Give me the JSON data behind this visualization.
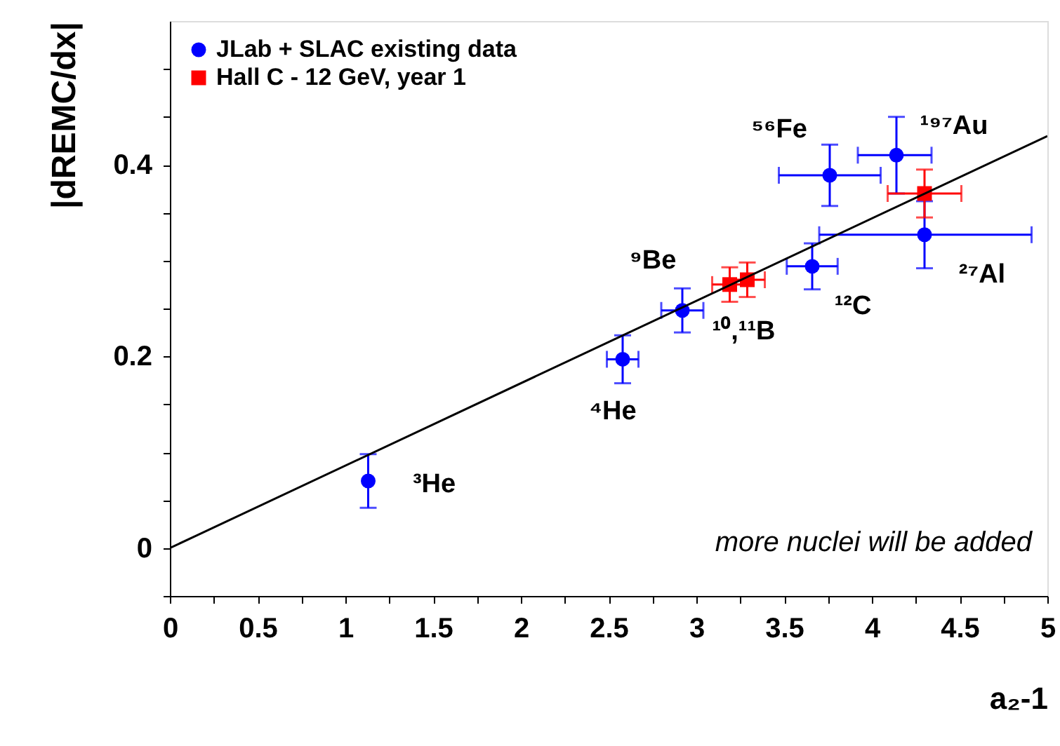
{
  "chart_data": {
    "type": "scatter",
    "xlabel": "a₂-1",
    "ylabel": "|dREMC/dx|",
    "xlim": [
      0,
      5
    ],
    "ylim": [
      -0.05,
      0.55
    ],
    "xticks": [
      0,
      {
        "value": 0.25,
        "label": null
      },
      0.5,
      {
        "value": 0.75,
        "label": null
      },
      1,
      {
        "value": 1.25,
        "label": null
      },
      1.5,
      {
        "value": 1.75,
        "label": null
      },
      2,
      {
        "value": 2.25,
        "label": null
      },
      2.5,
      {
        "value": 2.75,
        "label": null
      },
      3,
      {
        "value": 3.25,
        "label": null
      },
      3.5,
      {
        "value": 3.75,
        "label": null
      },
      4,
      {
        "value": 4.25,
        "label": null
      },
      4.5,
      {
        "value": 4.75,
        "label": null
      },
      5
    ],
    "yticks": [
      {
        "value": -0.05,
        "label": null
      },
      0,
      {
        "value": 0.05,
        "label": null
      },
      {
        "value": 0.1,
        "label": null
      },
      {
        "value": 0.15,
        "label": null
      },
      0.2,
      {
        "value": 0.25,
        "label": null
      },
      {
        "value": 0.3,
        "label": null
      },
      {
        "value": 0.35,
        "label": null
      },
      0.4,
      {
        "value": 0.45,
        "label": null
      },
      {
        "value": 0.5,
        "label": null
      }
    ],
    "grid": false,
    "legend": "top left",
    "series": [
      {
        "name": "JLab + SLAC existing data",
        "color": "#0000ff",
        "marker": "circle",
        "x": [
          1.13,
          2.58,
          2.92,
          3.66,
          3.76,
          4.14,
          4.3
        ],
        "values": [
          0.07,
          0.197,
          0.248,
          0.294,
          0.389,
          0.41,
          0.327
        ],
        "errors": [
          0.028,
          0.025,
          0.023,
          0.024,
          0.032,
          0.04,
          0.035
        ],
        "xerrors": [
          null,
          0.09,
          0.12,
          0.145,
          0.29,
          [
            3.92,
            4.34
          ],
          [
            3.7,
            4.91
          ]
        ]
      },
      {
        "name": "Hall C - 12 GeV, year 1",
        "color": "#ff0000",
        "marker": "square",
        "x": [
          3.19,
          3.29,
          4.3
        ],
        "values": [
          0.275,
          0.28,
          0.37
        ],
        "errors": [
          0.018,
          0.018,
          0.025
        ],
        "xerrors": [
          0.1,
          0.1,
          0.21
        ]
      },
      {
        "type": "line",
        "color": "#000000",
        "x": [
          0,
          5
        ],
        "values": [
          0,
          0.43
        ]
      }
    ],
    "annotations": [
      {
        "text": "³He",
        "x": 1.13,
        "y": 0.07
      },
      {
        "text": "⁴He",
        "x": 2.58,
        "y": 0.197
      },
      {
        "text": "⁹Be",
        "x": 2.92,
        "y": 0.248
      },
      {
        "text": "¹⁰,¹¹B",
        "x": 3.19,
        "y": 0.275
      },
      {
        "text": "¹²C",
        "x": 3.66,
        "y": 0.294
      },
      {
        "text": "⁵⁶Fe",
        "x": 3.76,
        "y": 0.389
      },
      {
        "text": "¹⁹⁷Au",
        "x": 4.14,
        "y": 0.41
      },
      {
        "text": "²⁷Al",
        "x": 4.3,
        "y": 0.327
      },
      "more nuclei will be added"
    ]
  }
}
